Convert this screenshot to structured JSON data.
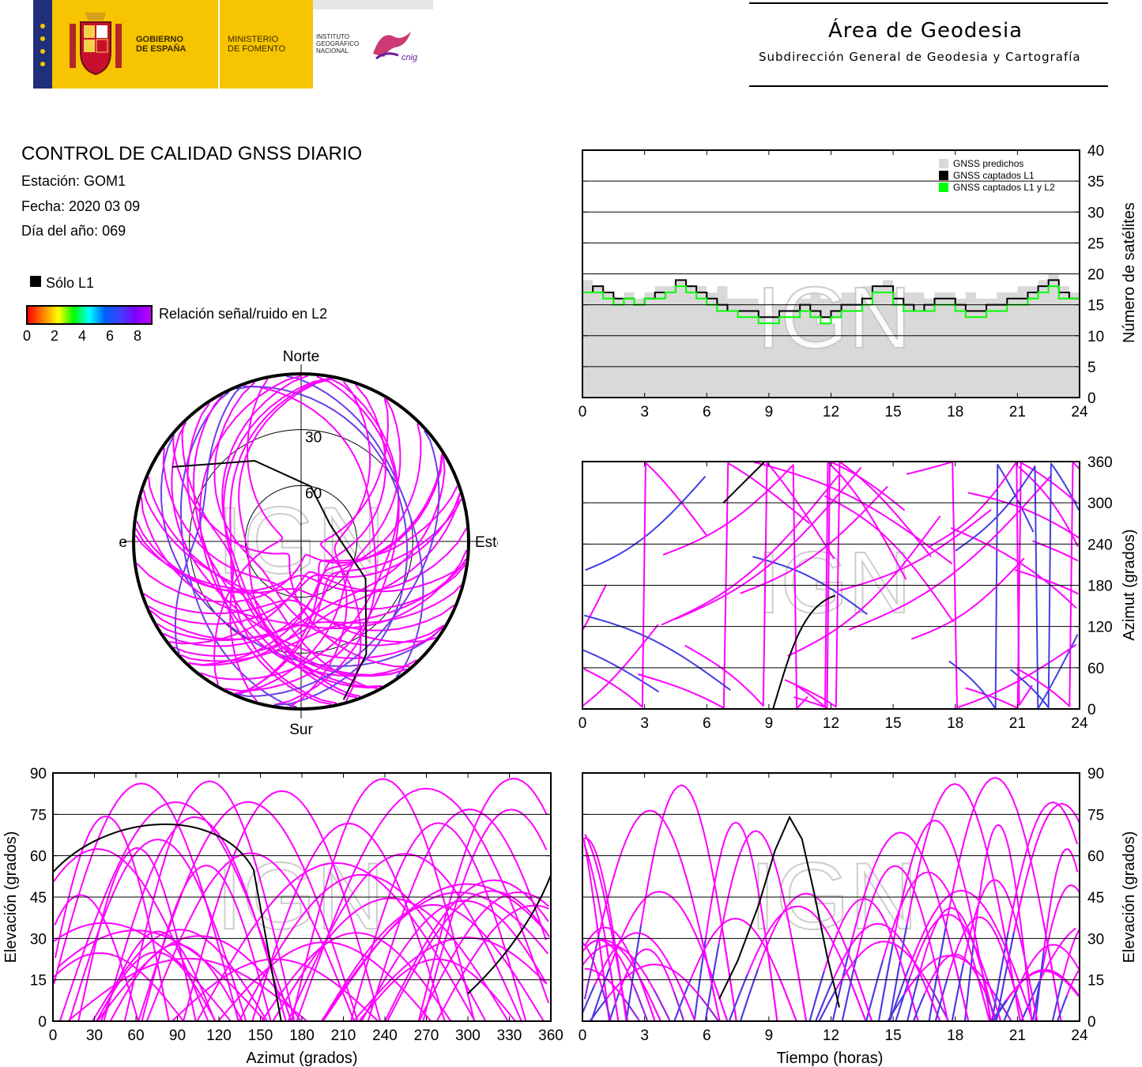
{
  "header": {
    "gov_line1": "GOBIERNO",
    "gov_line2": "DE ESPAÑA",
    "ministry_line1": "MINISTERIO",
    "ministry_line2": "DE FOMENTO",
    "ign_line1": "INSTITUTO",
    "ign_line2": "GEOGRÁFICO",
    "ign_line3": "NACIONAL",
    "cnig_logo": "cnig",
    "area_title": "Área de Geodesia",
    "area_subtitle": "Subdirección General de Geodesia y Cartografía",
    "brand_colors": {
      "gov_yellow": "#f6c400",
      "flag_blue": "#1f2f7a"
    }
  },
  "info": {
    "title": "CONTROL DE CALIDAD GNSS DIARIO",
    "station": "Estación: GOM1",
    "date": "Fecha: 2020 03 09",
    "doy": "Día del año: 069",
    "legend_l1": "Sólo L1",
    "snr_label": "Relación señal/ruido en L2",
    "snr_ticks": [
      "0",
      "2",
      "4",
      "6",
      "8"
    ]
  },
  "watermark": "IGN",
  "chart_data": [
    {
      "id": "satellites",
      "type": "line",
      "ylabel": "Número de satélites",
      "x_ticks": [
        0,
        3,
        6,
        9,
        12,
        15,
        18,
        21,
        24
      ],
      "y_ticks": [
        0,
        5,
        10,
        15,
        20,
        25,
        30,
        35,
        40
      ],
      "xlim": [
        0,
        24
      ],
      "ylim": [
        0,
        40
      ],
      "grid": true,
      "legend_position": "top-right",
      "series": [
        {
          "name": "GNSS predichos",
          "color": "#d9d9d9",
          "fill": true,
          "x": [
            0,
            0.5,
            1,
            1.5,
            2,
            2.5,
            3,
            3.5,
            4,
            4.5,
            5,
            5.5,
            6,
            6.5,
            7,
            7.5,
            8,
            8.5,
            9,
            9.5,
            10,
            10.5,
            11,
            11.5,
            12,
            12.5,
            13,
            13.5,
            14,
            14.5,
            15,
            15.5,
            16,
            16.5,
            17,
            17.5,
            18,
            18.5,
            19,
            19.5,
            20,
            20.5,
            21,
            21.5,
            22,
            22.5,
            23,
            23.5,
            24
          ],
          "values": [
            19,
            18,
            17,
            16,
            17,
            16,
            17,
            18,
            18,
            19,
            18,
            18,
            17,
            18,
            16,
            16,
            16,
            15,
            15,
            15,
            16,
            16,
            17,
            16,
            16,
            17,
            17,
            18,
            18,
            19,
            17,
            17,
            17,
            16,
            17,
            17,
            16,
            17,
            16,
            16,
            17,
            17,
            18,
            18,
            19,
            20,
            18,
            17,
            16
          ]
        },
        {
          "name": "GNSS captados L1",
          "color": "#000000",
          "x": [
            0,
            0.5,
            1,
            1.5,
            2,
            2.5,
            3,
            3.5,
            4,
            4.5,
            5,
            5.5,
            6,
            6.5,
            7,
            7.5,
            8,
            8.5,
            9,
            9.5,
            10,
            10.5,
            11,
            11.5,
            12,
            12.5,
            13,
            13.5,
            14,
            14.5,
            15,
            15.5,
            16,
            16.5,
            17,
            17.5,
            18,
            18.5,
            19,
            19.5,
            20,
            20.5,
            21,
            21.5,
            22,
            22.5,
            23,
            23.5,
            24
          ],
          "values": [
            17,
            18,
            17,
            16,
            16,
            15,
            16,
            17,
            17,
            19,
            18,
            17,
            16,
            15,
            14,
            14,
            14,
            13,
            13,
            14,
            14,
            15,
            14,
            13,
            14,
            15,
            15,
            16,
            18,
            18,
            16,
            15,
            14,
            15,
            16,
            16,
            15,
            14,
            14,
            15,
            15,
            16,
            16,
            17,
            18,
            19,
            17,
            16,
            16
          ]
        },
        {
          "name": "GNSS captados L1 y L2",
          "color": "#00ff00",
          "x": [
            0,
            0.5,
            1,
            1.5,
            2,
            2.5,
            3,
            3.5,
            4,
            4.5,
            5,
            5.5,
            6,
            6.5,
            7,
            7.5,
            8,
            8.5,
            9,
            9.5,
            10,
            10.5,
            11,
            11.5,
            12,
            12.5,
            13,
            13.5,
            14,
            14.5,
            15,
            15.5,
            16,
            16.5,
            17,
            17.5,
            18,
            18.5,
            19,
            19.5,
            20,
            20.5,
            21,
            21.5,
            22,
            22.5,
            23,
            23.5,
            24
          ],
          "values": [
            17,
            17,
            16,
            15,
            16,
            15,
            16,
            16,
            17,
            18,
            17,
            16,
            15,
            14,
            14,
            13,
            13,
            12,
            12,
            13,
            13,
            14,
            13,
            12,
            13,
            14,
            14,
            15,
            17,
            17,
            15,
            14,
            14,
            14,
            15,
            15,
            14,
            13,
            13,
            14,
            14,
            15,
            15,
            16,
            17,
            18,
            16,
            16,
            15
          ]
        }
      ]
    },
    {
      "id": "skyplot",
      "type": "scatter",
      "projection": "polar",
      "direction_labels": {
        "north": "Norte",
        "south": "Sur",
        "east": "Este",
        "west": "Oeste"
      },
      "ring_labels": [
        "30",
        "60"
      ],
      "note_color_scale": "magenta = high SNR, blue = low SNR, black = L1 only"
    },
    {
      "id": "azimuth_time",
      "type": "scatter",
      "ylabel": "Azimut (grados)",
      "x_ticks": [
        0,
        3,
        6,
        9,
        12,
        15,
        18,
        21,
        24
      ],
      "y_ticks": [
        0,
        60,
        120,
        180,
        240,
        300,
        360
      ],
      "xlim": [
        0,
        24
      ],
      "ylim": [
        0,
        360
      ],
      "grid": true
    },
    {
      "id": "elevation_azimuth",
      "type": "scatter",
      "xlabel": "Azimut (grados)",
      "ylabel": "Elevación (grados)",
      "x_ticks": [
        0,
        30,
        60,
        90,
        120,
        150,
        180,
        210,
        240,
        270,
        300,
        330,
        360
      ],
      "y_ticks": [
        0,
        15,
        30,
        45,
        60,
        75,
        90
      ],
      "xlim": [
        0,
        360
      ],
      "ylim": [
        0,
        90
      ],
      "grid": true
    },
    {
      "id": "elevation_time",
      "type": "scatter",
      "xlabel": "Tiempo (horas)",
      "ylabel": "Elevación (grados)",
      "x_ticks": [
        0,
        3,
        6,
        9,
        12,
        15,
        18,
        21,
        24
      ],
      "y_ticks": [
        0,
        15,
        30,
        45,
        60,
        75,
        90
      ],
      "xlim": [
        0,
        24
      ],
      "ylim": [
        0,
        90
      ],
      "grid": true,
      "l1_only_track": {
        "x": [
          6.6,
          7.5,
          8.5,
          9.3,
          10,
          10.6,
          11.2,
          11.8,
          12.4
        ],
        "values": [
          8,
          22,
          42,
          62,
          74,
          66,
          46,
          24,
          5
        ]
      }
    }
  ]
}
